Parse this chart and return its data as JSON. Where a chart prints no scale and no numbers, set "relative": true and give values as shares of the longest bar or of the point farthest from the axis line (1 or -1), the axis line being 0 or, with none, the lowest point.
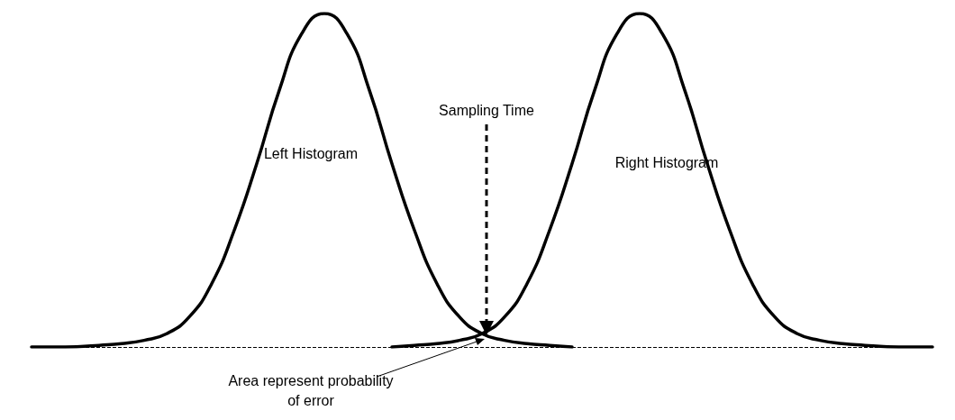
{
  "chart_data": {
    "type": "line",
    "relative": true,
    "marker": "none",
    "categories": [
      null,
      null,
      null,
      null,
      null,
      null,
      null,
      null,
      null,
      null,
      null,
      null,
      null,
      null,
      null,
      null,
      null,
      null,
      null,
      null,
      null,
      null,
      null,
      null,
      null,
      null,
      null,
      null,
      null,
      null,
      null,
      null,
      null,
      null,
      null,
      null,
      null,
      null,
      null,
      null,
      null
    ],
    "series": [
      {
        "color": "#000000",
        "values": [
          0,
          0,
          0.001,
          0.005,
          0.01,
          0.02,
          0.04,
          0.09,
          0.19,
          0.35,
          0.55,
          0.77,
          0.94,
          1,
          0.94,
          0.77,
          0.55,
          0.35,
          0.19,
          0.09,
          0.04,
          0.02,
          0.01,
          0.005,
          0,
          null,
          null,
          null,
          null,
          null,
          null,
          null,
          null,
          null,
          null,
          null,
          null,
          null,
          null,
          null,
          null
        ]
      },
      {
        "color": "#000000",
        "values": [
          null,
          null,
          null,
          null,
          null,
          null,
          null,
          null,
          null,
          null,
          null,
          null,
          null,
          null,
          null,
          null,
          0,
          0.005,
          0.01,
          0.02,
          0.04,
          0.09,
          0.19,
          0.35,
          0.55,
          0.77,
          0.94,
          1,
          0.94,
          0.77,
          0.55,
          0.35,
          0.19,
          0.09,
          0.04,
          0.02,
          0.01,
          0.005,
          0.001,
          0,
          0
        ]
      }
    ],
    "ref_lines": [
      {
        "axis": "y",
        "value": 0,
        "line_style": "dashed",
        "color": "#000000"
      }
    ],
    "annotations": [
      "Left Histogram",
      "Right Histogram",
      "Sampling Time",
      "Area represent probability of error"
    ]
  }
}
